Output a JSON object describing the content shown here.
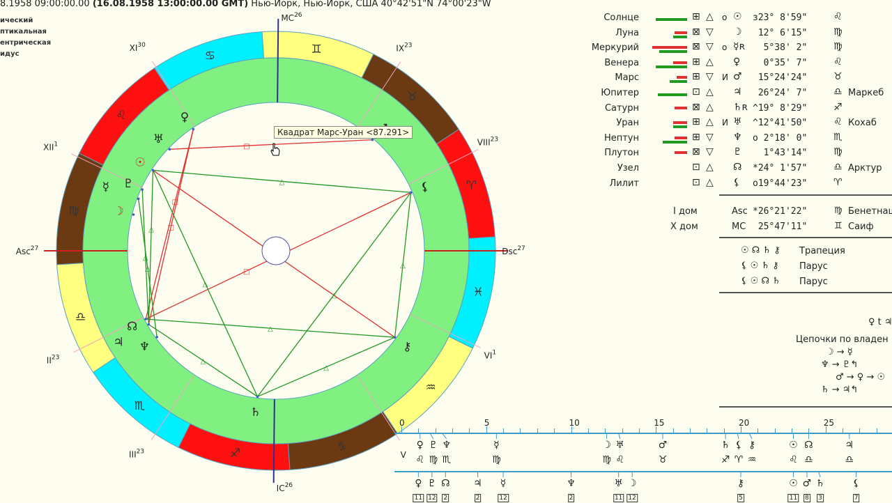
{
  "header": {
    "date_local": "8.1958   09:00:00.00 ",
    "gmt": "(16.08.1958  13:00:00.00 GMT)",
    "place": " Нью-Йорк, Нью-Йорк, США 40°42'51\"N  74°00'23\"W"
  },
  "left_labels": [
    "ический",
    "птикальная",
    "ентрическая",
    "идус"
  ],
  "tooltip": "Квадрат Марс-Уран <87.291>",
  "colors": {
    "fire": "#ff1010",
    "earth": "#6b3a12",
    "air": "#ffff80",
    "water": "#00f0ff",
    "house_ring": "#80f080",
    "trine": "#229922",
    "square": "#e03030"
  },
  "chart": {
    "asc": 176.36,
    "mc": 85.79,
    "signs": [
      "♈",
      "♉",
      "♊",
      "♋",
      "♌",
      "♍",
      "♎",
      "♏",
      "♐",
      "♑",
      "♒",
      "♓"
    ],
    "sign_elements": [
      "fire",
      "earth",
      "air",
      "water",
      "fire",
      "earth",
      "air",
      "water",
      "fire",
      "earth",
      "air",
      "water"
    ],
    "houses": [
      {
        "label": "Asc",
        "deg": "27",
        "lon": 176.36
      },
      {
        "label": "II",
        "deg": "23",
        "lon": 203
      },
      {
        "label": "III",
        "deg": "23",
        "lon": 233
      },
      {
        "label": "IC",
        "deg": "26",
        "lon": 265.79
      },
      {
        "label": "V",
        "deg": "",
        "lon": 299.5
      },
      {
        "label": "VI",
        "deg": "1",
        "lon": 331
      },
      {
        "label": "Dsc",
        "deg": "27",
        "lon": 356.36
      },
      {
        "label": "VIII",
        "deg": "23",
        "lon": 23
      },
      {
        "label": "IX",
        "deg": "23",
        "lon": 53
      },
      {
        "label": "MC",
        "deg": "26",
        "lon": 85.79
      },
      {
        "label": "XI",
        "deg": "30",
        "lon": 119.5
      },
      {
        "label": "XII",
        "deg": "1",
        "lon": 151
      }
    ],
    "planets": [
      {
        "id": "sun",
        "glyph": "☉",
        "lon": 143.15,
        "color": "#d02020"
      },
      {
        "id": "moon",
        "glyph": "☽",
        "lon": 162.1,
        "color": "#d02020"
      },
      {
        "id": "mercury",
        "glyph": "☿",
        "lon": 155.63,
        "color": "#222"
      },
      {
        "id": "venus",
        "glyph": "♀",
        "lon": 120.59,
        "color": "#222"
      },
      {
        "id": "mars",
        "glyph": "♂",
        "lon": 45.4,
        "color": "#222"
      },
      {
        "id": "jupiter",
        "glyph": "♃",
        "lon": 206.4,
        "color": "#222"
      },
      {
        "id": "saturn",
        "glyph": "♄",
        "lon": 259.14,
        "color": "#222"
      },
      {
        "id": "uranus",
        "glyph": "♅",
        "lon": 132.7,
        "color": "#222"
      },
      {
        "id": "neptune",
        "glyph": "♆",
        "lon": 212.3,
        "color": "#222"
      },
      {
        "id": "pluto",
        "glyph": "♇",
        "lon": 151.72,
        "color": "#222"
      },
      {
        "id": "node",
        "glyph": "☊",
        "lon": 204.03,
        "color": "#222"
      },
      {
        "id": "lilith",
        "glyph": "⚸",
        "lon": 19.74,
        "color": "#111"
      },
      {
        "id": "chiron",
        "glyph": "⚷",
        "lon": 320.3,
        "color": "#222"
      }
    ],
    "aspects": [
      {
        "a": "mars",
        "b": "uranus",
        "type": "square"
      },
      {
        "a": "venus",
        "b": "jupiter",
        "type": "square"
      },
      {
        "a": "venus",
        "b": "node",
        "type": "square"
      },
      {
        "a": "sun",
        "b": "chiron",
        "type": "square"
      },
      {
        "a": "node",
        "b": "lilith",
        "type": "square"
      },
      {
        "a": "sun",
        "b": "lilith",
        "type": "trine"
      },
      {
        "a": "sun",
        "b": "saturn",
        "type": "trine"
      },
      {
        "a": "lilith",
        "b": "saturn",
        "type": "trine"
      },
      {
        "a": "saturn",
        "b": "chiron",
        "type": "trine"
      },
      {
        "a": "lilith",
        "b": "chiron",
        "type": "trine"
      },
      {
        "a": "node",
        "b": "chiron",
        "type": "trine"
      },
      {
        "a": "jupiter",
        "b": "saturn",
        "type": "trine"
      },
      {
        "a": "pluto",
        "b": "jupiter",
        "type": "trine"
      },
      {
        "a": "sun",
        "b": "jupiter",
        "type": "trine"
      },
      {
        "a": "mercury",
        "b": "neptune",
        "type": "trine"
      }
    ]
  },
  "table": [
    {
      "name": "Солнце",
      "green": 45,
      "red": 0,
      "g1": "⊞",
      "g2": "△",
      "flag": "о",
      "glyph": "☉",
      "pos": "з23° 8'59\"",
      "sign": "♌",
      "star": ""
    },
    {
      "name": "Луна",
      "green": 20,
      "red": 18,
      "g1": "⊠",
      "g2": "▽",
      "flag": "",
      "glyph": "☽",
      "pos": " 12° 6'15\"",
      "sign": "♍",
      "star": ""
    },
    {
      "name": "Меркурий",
      "green": 40,
      "red": 50,
      "g1": "⊠",
      "g2": "▽",
      "flag": "о",
      "glyph": "☿ʀ",
      "pos": "  5°38' 2\"",
      "sign": "♍",
      "star": ""
    },
    {
      "name": "Венера",
      "green": 45,
      "red": 20,
      "g1": "⊞",
      "g2": "△",
      "flag": "",
      "glyph": "♀",
      "pos": "  0°35' 7\"",
      "sign": "♌",
      "star": ""
    },
    {
      "name": "Марс",
      "green": 25,
      "red": 15,
      "g1": "⊞",
      "g2": "▽",
      "flag": "И",
      "glyph": "♂",
      "pos": " 15°24'24\"",
      "sign": "♉",
      "star": ""
    },
    {
      "name": "Юпитер",
      "green": 42,
      "red": 0,
      "g1": "⊡",
      "g2": "△",
      "flag": "",
      "glyph": "♃",
      "pos": " 26°24' 7\"",
      "sign": "♎",
      "star": "Маркеб"
    },
    {
      "name": "Сатурн",
      "green": 0,
      "red": 18,
      "g1": "⊠",
      "g2": "△",
      "flag": "",
      "glyph": "♄ʀ",
      "pos": "^19° 8'29\"",
      "sign": "♐",
      "star": ""
    },
    {
      "name": "Уран",
      "green": 20,
      "red": 20,
      "g1": "⊞",
      "g2": "△",
      "flag": "И",
      "glyph": "♅",
      "pos": "^12°41'50\"",
      "sign": "♌",
      "star": "Кохаб"
    },
    {
      "name": "Нептун",
      "green": 35,
      "red": 18,
      "g1": "⊞",
      "g2": "▽",
      "flag": "",
      "glyph": "♆",
      "pos": "о 2°18' 0\"",
      "sign": "♏",
      "star": ""
    },
    {
      "name": "Плутон",
      "green": 0,
      "red": 18,
      "g1": "⊠",
      "g2": "▽",
      "flag": "",
      "glyph": "♇",
      "pos": "  1°43'14\"",
      "sign": "♍",
      "star": ""
    },
    {
      "name": "Узел",
      "green": 0,
      "red": 0,
      "g1": "⊡",
      "g2": "△",
      "flag": "",
      "glyph": "☊",
      "pos": "*24° 1'57\"",
      "sign": "♎",
      "star": "Арктур"
    },
    {
      "name": "Лилит",
      "green": 0,
      "red": 0,
      "g1": "⊡",
      "g2": "△",
      "flag": "",
      "glyph": "⚸",
      "pos": "о19°44'23\"",
      "sign": "♈",
      "star": ""
    }
  ],
  "angles": [
    {
      "house": "I дом",
      "label": "Asc",
      "pos": "*26°21'22\"",
      "sign": "♍",
      "star": "Бенетнаш"
    },
    {
      "house": "X дом",
      "label": "MC",
      "pos": " 25°47'11\"",
      "sign": "♊",
      "star": "Саиф"
    }
  ],
  "configurations": [
    {
      "glyphs": "☉ ☊ ♄ ⚷",
      "name": "Трапеция"
    },
    {
      "glyphs": "⚸ ☉ ♄ ⚷",
      "name": "Парус"
    },
    {
      "glyphs": "⚸ ☉ ☊ ♄",
      "name": "Парус"
    }
  ],
  "reception": "♀ t ♃",
  "chains_title": "Цепочки по владен",
  "chains": [
    "☽ → ☿",
    "♆ → ♇↰",
    "♂ → ♀ → ☉",
    "♄ → ♃↰"
  ],
  "ruler": {
    "max": 29,
    "labels": [
      "0",
      "5",
      "10",
      "15",
      "20",
      "25"
    ],
    "top": [
      {
        "deg": 1.1,
        "glyph": "♀",
        "sign": "♌"
      },
      {
        "deg": 1.7,
        "glyph": "♇",
        "sign": "♍"
      },
      {
        "deg": 2.4,
        "glyph": "♆",
        "sign": "♏"
      },
      {
        "deg": 5.6,
        "glyph": "☿",
        "sign": "♍"
      },
      {
        "deg": 12.1,
        "glyph": "☽",
        "sign": "♍"
      },
      {
        "deg": 12.8,
        "glyph": "♅",
        "sign": "♌"
      },
      {
        "deg": 15.4,
        "glyph": "♂",
        "sign": "♉"
      },
      {
        "deg": 19.1,
        "glyph": "♄",
        "sign": "♐"
      },
      {
        "deg": 19.8,
        "glyph": "⚸",
        "sign": "♈"
      },
      {
        "deg": 20.5,
        "glyph": "⚷",
        "sign": "♒"
      },
      {
        "deg": 23.1,
        "glyph": "☉",
        "sign": "♌"
      },
      {
        "deg": 24.0,
        "glyph": "☊",
        "sign": "♎"
      },
      {
        "deg": 26.4,
        "glyph": "♃",
        "sign": "♎"
      }
    ],
    "bottom": [
      {
        "deg": 1.0,
        "glyph": "♀",
        "house": "11"
      },
      {
        "deg": 1.8,
        "glyph": "♇",
        "house": "12"
      },
      {
        "deg": 2.6,
        "glyph": "☊",
        "house": "2"
      },
      {
        "deg": 4.5,
        "glyph": "♃",
        "house": "2"
      },
      {
        "deg": 6.0,
        "glyph": "☿",
        "house": "12"
      },
      {
        "deg": 10.0,
        "glyph": "♆",
        "house": "2"
      },
      {
        "deg": 12.8,
        "glyph": "♅",
        "house": "11"
      },
      {
        "deg": 13.6,
        "glyph": "☽",
        "house": "12"
      },
      {
        "deg": 20.0,
        "glyph": "⚷",
        "house": "5"
      },
      {
        "deg": 23.1,
        "glyph": "☉",
        "house": "11"
      },
      {
        "deg": 23.9,
        "glyph": "♂",
        "house": "8"
      },
      {
        "deg": 24.6,
        "glyph": "♄",
        "house": "3"
      },
      {
        "deg": 26.8,
        "glyph": "⚸",
        "house": "7"
      }
    ]
  }
}
